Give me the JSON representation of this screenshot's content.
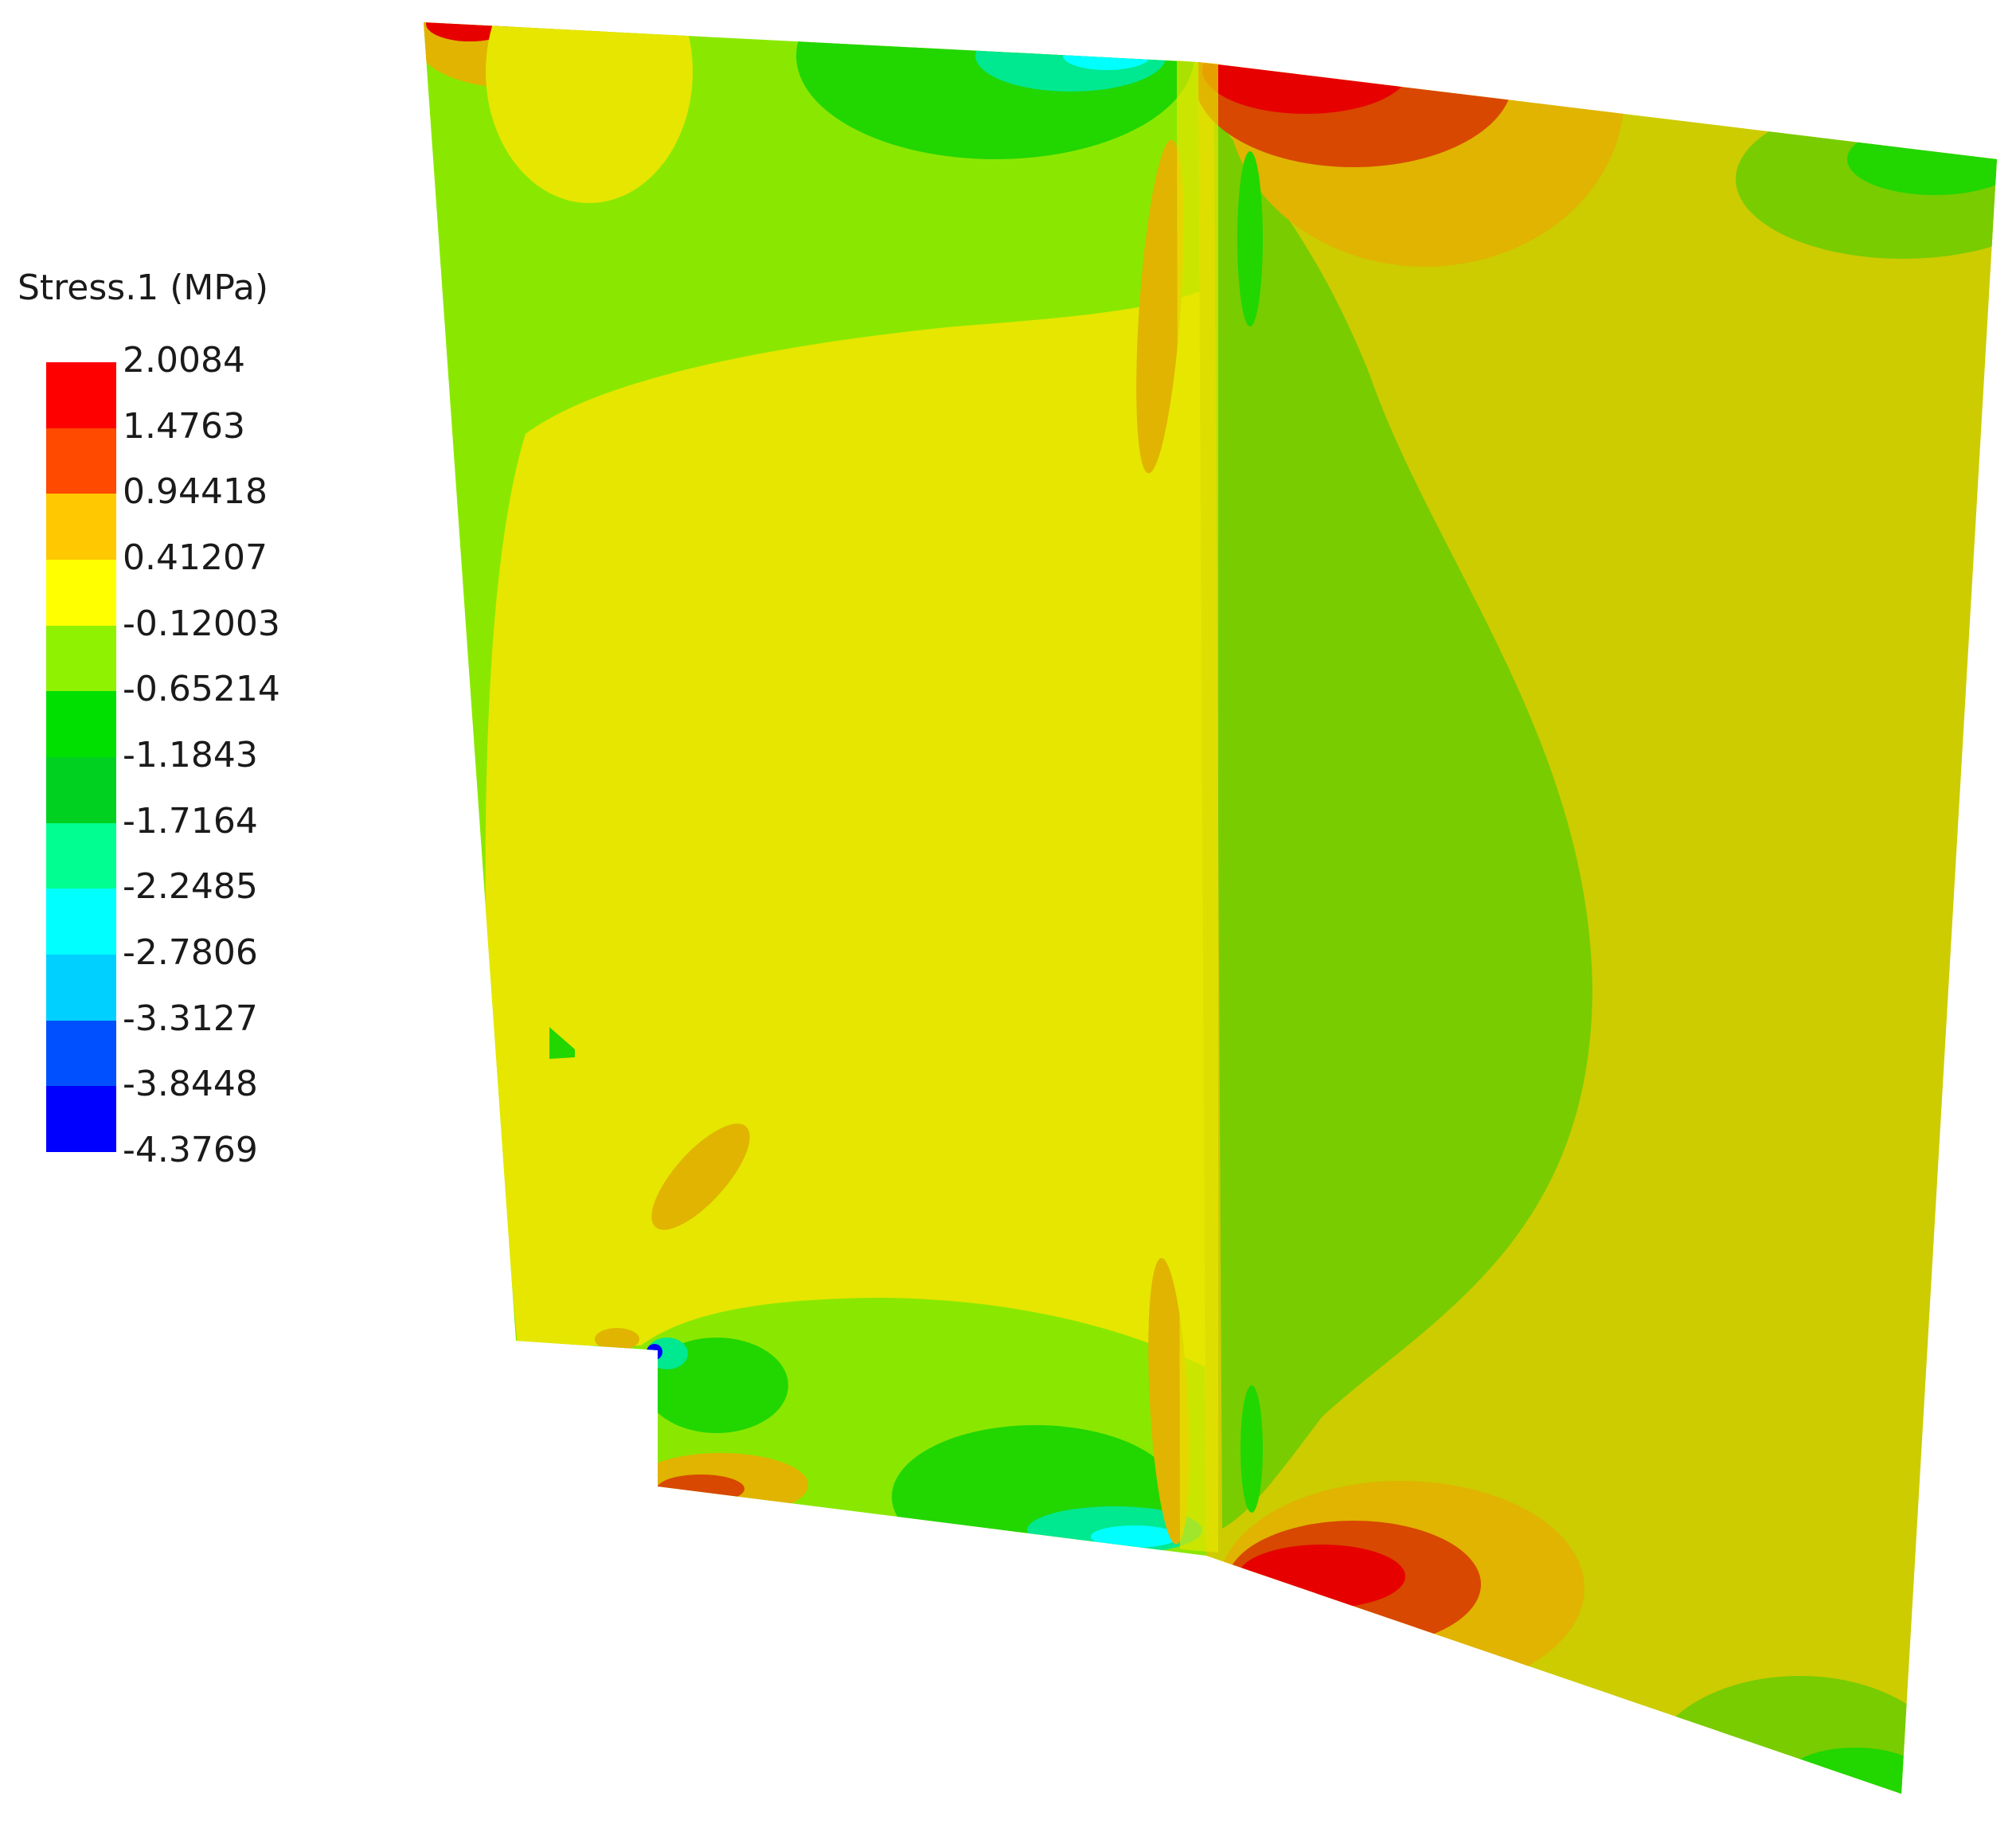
{
  "legend": {
    "title": "Stress.1 (MPa)",
    "ticks": [
      "2.0084",
      "1.4763",
      "0.94418",
      "0.41207",
      "-0.12003",
      "-0.65214",
      "-1.1843",
      "-1.7164",
      "-2.2485",
      "-2.7806",
      "-3.3127",
      "-3.8448",
      "-4.3769"
    ],
    "band_colors": [
      "#ff0000",
      "#ff4a00",
      "#ffc800",
      "#ffff00",
      "#8ff200",
      "#00e000",
      "#00d020",
      "#00ff90",
      "#00ffff",
      "#00d0ff",
      "#0050ff",
      "#0000ff"
    ]
  },
  "field_colors": {
    "yellow": "#e6e600",
    "olive_yellow": "#cccc00",
    "lime": "#8ae800",
    "green_olive": "#78cc00",
    "green": "#22d600",
    "cyan_green": "#00e890",
    "cyan": "#00ffff",
    "orange": "#e0b400",
    "orange_red": "#d84800",
    "red": "#e60000",
    "blue": "#0000ff"
  }
}
